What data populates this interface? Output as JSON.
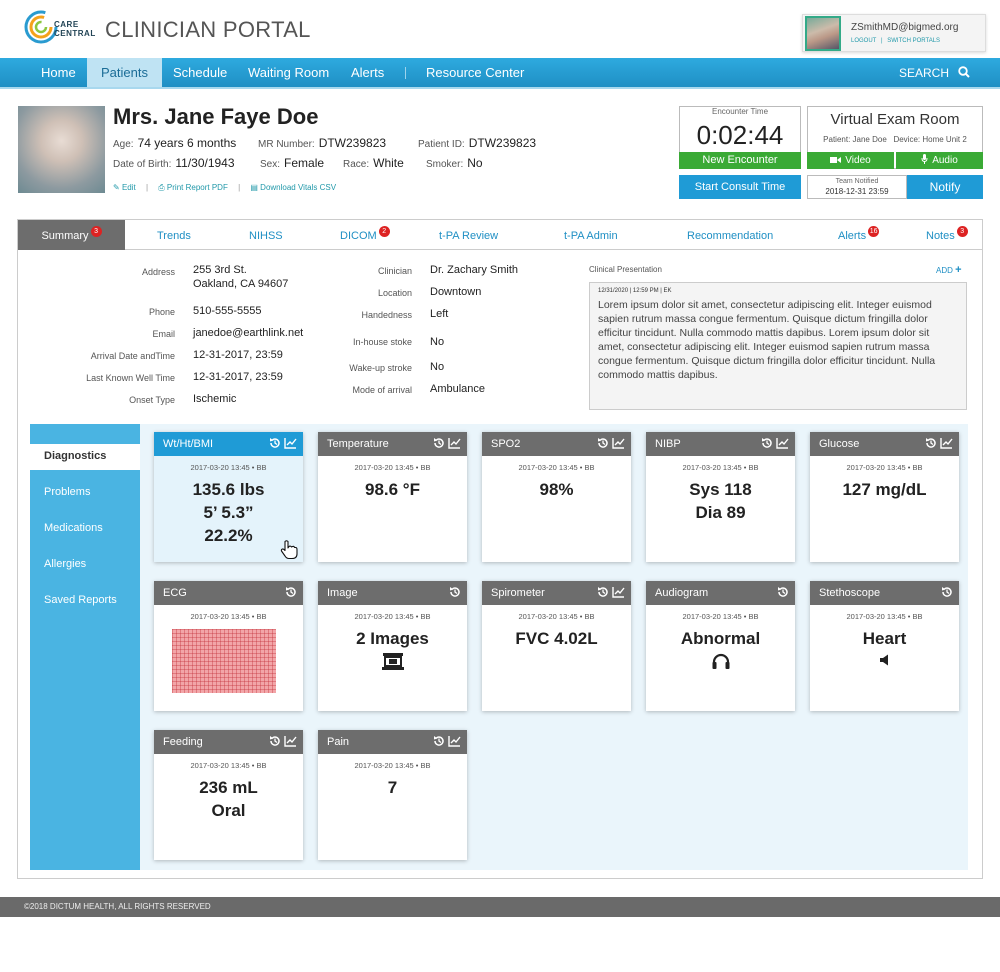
{
  "header": {
    "logo_line1": "CARE",
    "logo_line2": "CENTRAL",
    "portal_title": "CLINICIAN PORTAL",
    "user_email": "ZSmithMD@bigmed.org",
    "logout": "LOGOUT",
    "link_sep": "|",
    "switch_portals": "SWITCH PORTALS"
  },
  "nav": {
    "items": [
      "Home",
      "Patients",
      "Schedule",
      "Waiting Room",
      "Alerts",
      "Resource Center"
    ],
    "active": "Patients",
    "search": "SEARCH"
  },
  "patient": {
    "name": "Mrs. Jane Faye Doe",
    "age_label": "Age:",
    "age": "74 years 6 months",
    "dob_label": "Date of Birth:",
    "dob": "11/30/1943",
    "mr_label": "MR Number:",
    "mr": "DTW239823",
    "sex_label": "Sex:",
    "sex": "Female",
    "race_label": "Race:",
    "race": "White",
    "pid_label": "Patient ID:",
    "pid": "DTW239823",
    "smoker_label": "Smoker:",
    "smoker": "No",
    "edit": "Edit",
    "print": "Print Report PDF",
    "download": "Download Vitals CSV",
    "link_sep": "|"
  },
  "encounter": {
    "label": "Encounter Time",
    "time": "0:02:44",
    "new_button": "New Encounter",
    "consult_button": "Start Consult Time"
  },
  "exam_room": {
    "title": "Virtual Exam Room",
    "patient": "Patient: Jane Doe",
    "device": "Device: Home Unit 2",
    "video": "Video",
    "audio": "Audio",
    "team_label": "Team Notified",
    "team_value": "2018-12-31  23:59",
    "notify": "Notify"
  },
  "tabs": [
    {
      "label": "Summary",
      "badge": "3"
    },
    {
      "label": "Trends",
      "badge": ""
    },
    {
      "label": "NIHSS",
      "badge": ""
    },
    {
      "label": "DICOM",
      "badge": "2"
    },
    {
      "label": "t-PA Review",
      "badge": ""
    },
    {
      "label": "t-PA Admin",
      "badge": ""
    },
    {
      "label": "Recommendation",
      "badge": ""
    },
    {
      "label": "Alerts",
      "badge": "16"
    },
    {
      "label": "Notes",
      "badge": "3"
    }
  ],
  "summary": {
    "address_label": "Address",
    "address_line1": "255 3rd St.",
    "address_line2": "Oakland, CA 94607",
    "phone_label": "Phone",
    "phone": "510-555-5555",
    "email_label": "Email",
    "email": "janedoe@earthlink.net",
    "arrival_label": "Arrival Date andTime",
    "arrival": "12-31-2017, 23:59",
    "lkw_label": "Last Known Well Time",
    "lkw": "12-31-2017, 23:59",
    "onset_label": "Onset Type",
    "onset": "Ischemic",
    "clinician_label": "Clinician",
    "clinician": "Dr. Zachary Smith",
    "location_label": "Location",
    "location": "Downtown",
    "handedness_label": "Handedness",
    "handedness": "Left",
    "inhouse_label": "In-house stoke",
    "inhouse": "No",
    "wakeup_label": "Wake-up stroke",
    "wakeup": "No",
    "mode_label": "Mode of arrival",
    "mode": "Ambulance",
    "cp_title": "Clinical Presentation",
    "cp_add": "ADD",
    "cp_meta": "12/31/2020  |  12:59 PM  |  EK",
    "cp_text": "Lorem ipsum dolor sit amet, consectetur adipiscing elit. Integer euismod sapien rutrum massa congue fermentum. Quisque dictum fringilla dolor efficitur tincidunt. Nulla commodo mattis dapibus. Lorem ipsum dolor sit amet, consectetur adipiscing elit. Integer euismod sapien rutrum massa congue fermentum. Quisque dictum fringilla dolor efficitur tincidunt. Nulla commodo mattis dapibus."
  },
  "sidenav": {
    "items": [
      "Diagnostics",
      "Problems",
      "Medications",
      "Allergies",
      "Saved Reports"
    ],
    "active": "Diagnostics"
  },
  "tiles": [
    {
      "title": "Wt/Ht/BMI",
      "date": "2017-03-20 13:45 • BB",
      "values": [
        "135.6 lbs",
        "5’ 5.3”",
        "22.2%"
      ],
      "history_icon": "history-icon",
      "trend_icon": "trend-chart-icon",
      "selected": true
    },
    {
      "title": "Temperature",
      "date": "2017-03-20 13:45 • BB",
      "values": [
        "98.6 °F"
      ],
      "history_icon": "history-icon",
      "trend_icon": "trend-chart-icon"
    },
    {
      "title": "SPO2",
      "date": "2017-03-20 13:45 • BB",
      "values": [
        "98%"
      ],
      "history_icon": "history-icon",
      "trend_icon": "trend-chart-icon"
    },
    {
      "title": "NIBP",
      "date": "2017-03-20 13:45 • BB",
      "values": [
        "Sys 118",
        "Dia 89"
      ],
      "history_icon": "history-icon",
      "trend_icon": "trend-chart-icon"
    },
    {
      "title": "Glucose",
      "date": "2017-03-20 13:45 • BB",
      "values": [
        "127 mg/dL"
      ],
      "history_icon": "history-icon",
      "trend_icon": "trend-chart-icon"
    },
    {
      "title": "ECG",
      "date": "2017-03-20 13:45 • BB",
      "values": [],
      "history_icon": "history-icon",
      "glyph": "ecg-strip"
    },
    {
      "title": "Image",
      "date": "2017-03-20 13:45 • BB",
      "values": [
        "2 Images"
      ],
      "history_icon": "history-icon",
      "glyph": "image-stack-icon"
    },
    {
      "title": "Spirometer",
      "date": "2017-03-20 13:45 • BB",
      "values": [
        "FVC 4.02L"
      ],
      "history_icon": "history-icon",
      "trend_icon": "trend-chart-icon"
    },
    {
      "title": "Audiogram",
      "date": "2017-03-20 13:45 • BB",
      "values": [
        "Abnormal"
      ],
      "history_icon": "history-icon",
      "glyph": "headphones-icon"
    },
    {
      "title": "Stethoscope",
      "date": "2017-03-20 13:45 • BB",
      "values": [
        "Heart"
      ],
      "history_icon": "history-icon",
      "glyph": "speaker-icon"
    },
    {
      "title": "Feeding",
      "date": "2017-03-20 13:45 • BB",
      "values": [
        "236 mL",
        "Oral"
      ],
      "history_icon": "history-icon",
      "trend_icon": "trend-chart-icon"
    },
    {
      "title": "Pain",
      "date": "2017-03-20 13:45 • BB",
      "values": [
        "7"
      ],
      "history_icon": "history-icon",
      "trend_icon": "trend-chart-icon"
    }
  ],
  "footer": "©2018 DICTUM HEALTH, ALL RIGHTS RESERVED",
  "colors": {
    "primary": "#1f9bd6",
    "green": "#3aaa35",
    "badge": "#dd2222",
    "tile_header": "#6d6d6d",
    "sidenav": "#4ab4e2"
  }
}
